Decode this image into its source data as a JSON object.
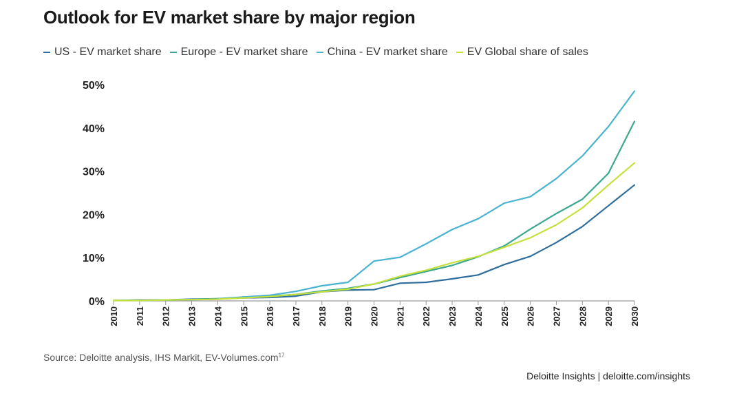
{
  "source": {
    "text": "Source: Deloitte analysis, IHS Markit, EV-Volumes.com",
    "footnote": "17"
  },
  "credit": "Deloitte Insights | deloitte.com/insights",
  "colors": {
    "axis": "#999999"
  },
  "chart_data": {
    "type": "line",
    "title": "Outlook for EV market share by major region",
    "xlabel": "",
    "ylabel": "",
    "x": [
      "2010",
      "2011",
      "2012",
      "2013",
      "2014",
      "2015",
      "2016",
      "2017",
      "2018",
      "2019",
      "2020",
      "2021",
      "2022",
      "2023",
      "2024",
      "2025",
      "2026",
      "2027",
      "2028",
      "2029",
      "2030"
    ],
    "ylim": [
      0,
      50
    ],
    "yticks": [
      0,
      10,
      20,
      30,
      40,
      50
    ],
    "ytick_labels": [
      "0%",
      "10%",
      "20%",
      "30%",
      "40%",
      "50%"
    ],
    "grid": false,
    "legend": "top",
    "series": [
      {
        "name": "US - EV market share",
        "color": "#2e6e9e",
        "values": [
          0.1,
          0.2,
          0.2,
          0.4,
          0.5,
          0.7,
          0.8,
          1.1,
          2.1,
          2.5,
          2.6,
          4.1,
          4.3,
          5.1,
          6.0,
          8.4,
          10.3,
          13.5,
          17.2,
          22.0,
          26.8
        ]
      },
      {
        "name": "Europe - EV market share",
        "color": "#3aa88e",
        "values": [
          0.1,
          0.1,
          0.2,
          0.3,
          0.5,
          0.9,
          1.1,
          1.5,
          2.3,
          2.9,
          3.9,
          5.4,
          6.8,
          8.2,
          10.2,
          12.7,
          16.6,
          20.2,
          23.5,
          29.5,
          41.5
        ]
      },
      {
        "name": "China - EV market share",
        "color": "#4ab3d1",
        "values": [
          0.1,
          0.1,
          0.2,
          0.3,
          0.4,
          0.9,
          1.3,
          2.2,
          3.5,
          4.3,
          9.2,
          10.1,
          13.2,
          16.5,
          19.0,
          22.6,
          24.1,
          28.3,
          33.5,
          40.3,
          48.5
        ]
      },
      {
        "name": "EV Global share of sales",
        "color": "#c5e03c",
        "values": [
          0.1,
          0.1,
          0.2,
          0.3,
          0.4,
          0.7,
          1.0,
          1.5,
          2.1,
          2.7,
          3.9,
          5.7,
          7.1,
          8.8,
          10.3,
          12.4,
          14.6,
          17.6,
          21.5,
          26.8,
          31.9
        ]
      }
    ]
  }
}
